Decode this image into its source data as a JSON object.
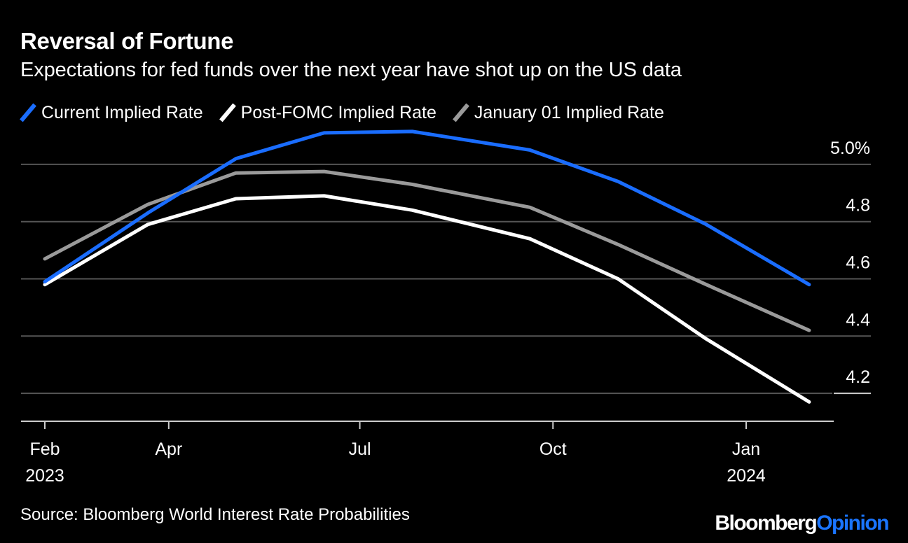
{
  "title": "Reversal of Fortune",
  "subtitle": "Expectations for fed funds over the next year have shot up on the US data",
  "source": "Source: Bloomberg World Interest Rate Probabilities",
  "brand": {
    "part1": "Bloomberg",
    "part2": "Opinion"
  },
  "colors": {
    "background": "#000000",
    "current": "#1a6dff",
    "post_fomc": "#ffffff",
    "january": "#9a9a9a",
    "grid": "#555555"
  },
  "chart_data": {
    "type": "line",
    "x": [
      "2023-02",
      "2023-03",
      "2023-05",
      "2023-06",
      "2023-08",
      "2023-09",
      "2023-11",
      "2023-12",
      "2024-01",
      "2024-02"
    ],
    "x_ticks": [
      {
        "label": "Feb",
        "sublabel": "2023",
        "x": "2023-02"
      },
      {
        "label": "Apr",
        "sublabel": "",
        "x": "2023-04"
      },
      {
        "label": "Jul",
        "sublabel": "",
        "x": "2023-07"
      },
      {
        "label": "Oct",
        "sublabel": "",
        "x": "2023-10"
      },
      {
        "label": "Jan",
        "sublabel": "2024",
        "x": "2024-01"
      }
    ],
    "y_ticks": [
      {
        "label": "5.0%",
        "value": 5.0
      },
      {
        "label": "4.8",
        "value": 4.8
      },
      {
        "label": "4.6",
        "value": 4.6
      },
      {
        "label": "4.4",
        "value": 4.4
      },
      {
        "label": "4.2",
        "value": 4.2
      }
    ],
    "ylim": [
      4.1,
      5.1
    ],
    "series": [
      {
        "name": "Current Implied Rate",
        "color": "#1a6dff",
        "points": [
          {
            "x": "2023-02-01",
            "y": 4.59
          },
          {
            "x": "2023-03-22",
            "y": 4.83
          },
          {
            "x": "2023-05-03",
            "y": 5.02
          },
          {
            "x": "2023-06-14",
            "y": 5.11
          },
          {
            "x": "2023-07-26",
            "y": 5.115
          },
          {
            "x": "2023-09-20",
            "y": 5.05
          },
          {
            "x": "2023-11-01",
            "y": 4.94
          },
          {
            "x": "2023-12-13",
            "y": 4.79
          },
          {
            "x": "2024-01-31",
            "y": 4.58
          }
        ]
      },
      {
        "name": "Post-FOMC Implied Rate",
        "color": "#ffffff",
        "points": [
          {
            "x": "2023-02-01",
            "y": 4.58
          },
          {
            "x": "2023-03-22",
            "y": 4.79
          },
          {
            "x": "2023-05-03",
            "y": 4.88
          },
          {
            "x": "2023-06-14",
            "y": 4.89
          },
          {
            "x": "2023-07-26",
            "y": 4.84
          },
          {
            "x": "2023-09-20",
            "y": 4.74
          },
          {
            "x": "2023-11-01",
            "y": 4.6
          },
          {
            "x": "2023-12-13",
            "y": 4.39
          },
          {
            "x": "2024-01-31",
            "y": 4.17
          }
        ]
      },
      {
        "name": "January 01 Implied Rate",
        "color": "#9a9a9a",
        "points": [
          {
            "x": "2023-02-01",
            "y": 4.67
          },
          {
            "x": "2023-03-22",
            "y": 4.86
          },
          {
            "x": "2023-05-03",
            "y": 4.97
          },
          {
            "x": "2023-06-14",
            "y": 4.975
          },
          {
            "x": "2023-07-26",
            "y": 4.93
          },
          {
            "x": "2023-09-20",
            "y": 4.85
          },
          {
            "x": "2023-11-01",
            "y": 4.72
          },
          {
            "x": "2023-12-13",
            "y": 4.58
          },
          {
            "x": "2024-01-31",
            "y": 4.42
          }
        ]
      }
    ]
  }
}
